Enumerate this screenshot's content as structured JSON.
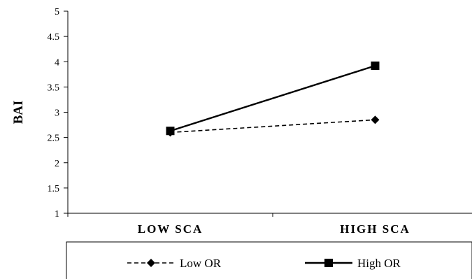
{
  "chart_data": {
    "type": "line",
    "title": "",
    "xlabel": "",
    "ylabel": "BAI",
    "categories": [
      "LOW SCA",
      "HIGH SCA"
    ],
    "ylim": [
      1,
      5
    ],
    "yticks": [
      "1",
      "1.5",
      "2",
      "2.5",
      "3",
      "3.5",
      "4",
      "4.5",
      "5"
    ],
    "grid": false,
    "legend_position": "bottom",
    "series": [
      {
        "name": "Low OR",
        "values": [
          2.6,
          2.85
        ],
        "line": "dashed",
        "marker": "diamond",
        "color": "#000000"
      },
      {
        "name": "High OR",
        "values": [
          2.63,
          3.92
        ],
        "line": "solid",
        "marker": "square",
        "color": "#000000"
      }
    ]
  }
}
